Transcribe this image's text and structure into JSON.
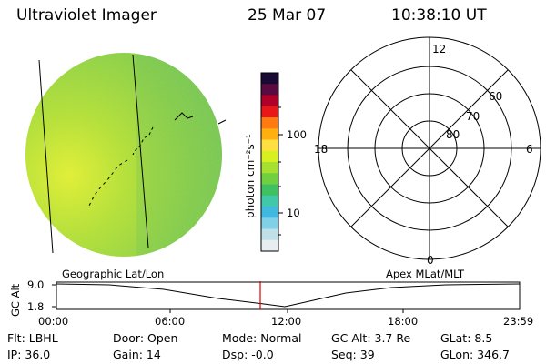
{
  "header": {
    "instrument": "Ultraviolet Imager",
    "date": "25 Mar 07",
    "time": "10:38:10 UT"
  },
  "colorbar": {
    "unit_label": "photon cm⁻²s⁻¹",
    "ticks": [
      "100",
      "10"
    ],
    "colors": [
      "#1a0a33",
      "#5a0a40",
      "#b0002a",
      "#e81818",
      "#ff7a10",
      "#ffb010",
      "#ffe040",
      "#d8f020",
      "#a8e030",
      "#70d040",
      "#40c060",
      "#40c8a8",
      "#40b8e0",
      "#80d0e8",
      "#c0e0e8",
      "#e8eef0"
    ]
  },
  "polar_grid": {
    "mlt_labels": [
      "12",
      "18",
      "6",
      "0"
    ],
    "lat_labels": [
      "60",
      "70",
      "80"
    ]
  },
  "timeline": {
    "left_title": "Geographic Lat/Lon",
    "right_title": "Apex MLat/MLT",
    "axis_label": "GC Alt",
    "y_ticks": [
      "9.0",
      "1.8"
    ],
    "x_ticks": [
      "00:00",
      "06:00",
      "12:00",
      "18:00",
      "23:59"
    ],
    "current_time_marker_color": "#e00000"
  },
  "info": {
    "flt": "Flt: LBHL",
    "ip": "IP: 36.0",
    "door": "Door: Open",
    "gain": "Gain: 14",
    "mode": "Mode: Normal",
    "dsp": "Dsp:   -0.0",
    "gc_alt": "GC Alt: 3.7 Re",
    "seq": "Seq: 39",
    "glat": "GLat:   8.5",
    "glon": "GLon: 346.7"
  }
}
